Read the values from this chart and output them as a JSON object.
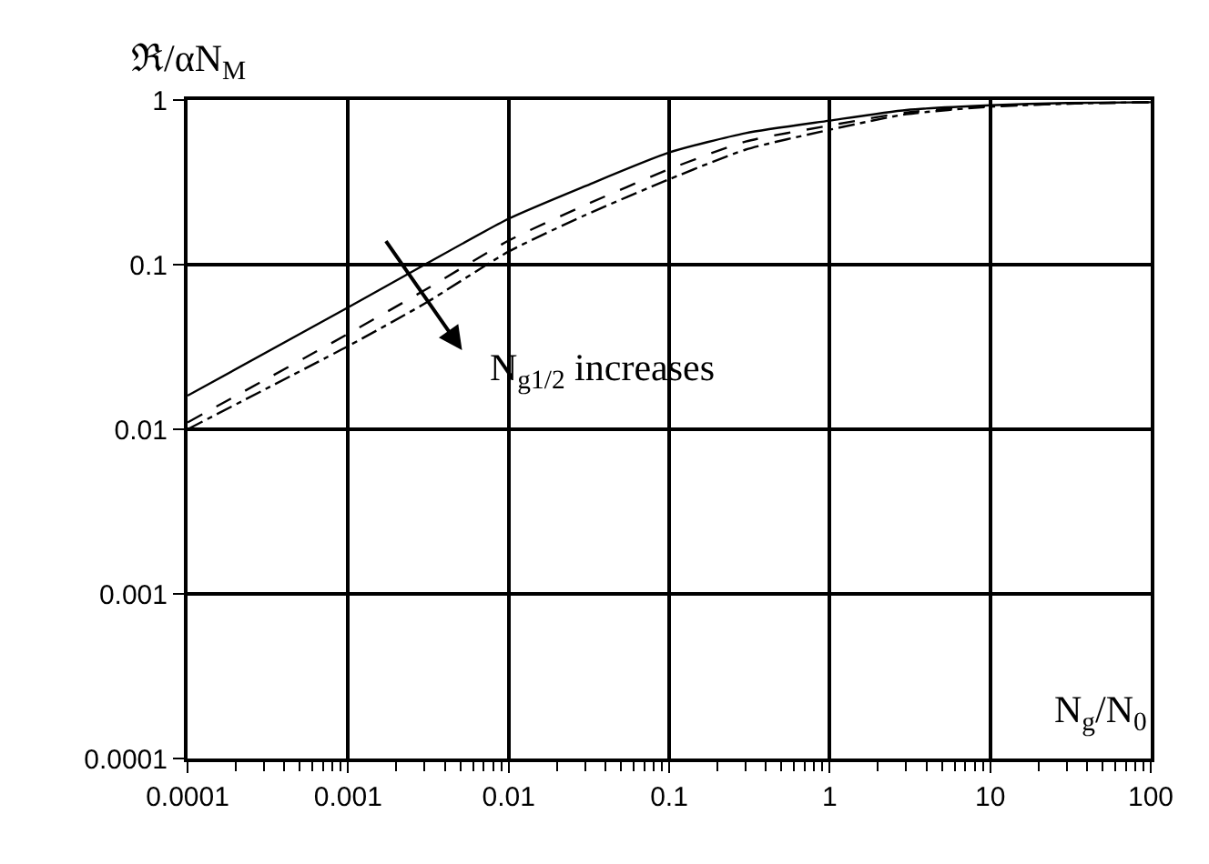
{
  "chart_data": {
    "type": "line",
    "xlabel": "N$_{g}$/N$_{0}$",
    "ylabel": "ℜ/αN$_{M}$",
    "x": [
      0.0001,
      0.001,
      0.003,
      0.01,
      0.03,
      0.1,
      0.3,
      1,
      3,
      10,
      30,
      100
    ],
    "series": [
      {
        "color": "#000000",
        "line_style": "solid",
        "values": [
          0.016,
          0.055,
          0.1,
          0.19,
          0.3,
          0.48,
          0.63,
          0.75,
          0.87,
          0.93,
          0.96,
          0.97
        ]
      },
      {
        "color": "#000000",
        "line_style": "dashed",
        "values": [
          0.011,
          0.038,
          0.07,
          0.14,
          0.23,
          0.38,
          0.56,
          0.7,
          0.84,
          0.92,
          0.95,
          0.97
        ]
      },
      {
        "color": "#000000",
        "line_style": "dotted",
        "values": [
          0.01,
          0.032,
          0.058,
          0.12,
          0.2,
          0.33,
          0.5,
          0.66,
          0.82,
          0.91,
          0.95,
          0.97
        ]
      }
    ],
    "annotations": [
      "N$_{g1/2}$ increases"
    ],
    "log": "xy",
    "grid": true,
    "xlim": [
      0.0001,
      100
    ],
    "xticks": [
      0.0001,
      0.001,
      0.01,
      0.1,
      1,
      10,
      100
    ],
    "ylim": [
      0.0001,
      1
    ],
    "yticks": [
      0.0001,
      0.001,
      0.01,
      0.1,
      1
    ]
  }
}
